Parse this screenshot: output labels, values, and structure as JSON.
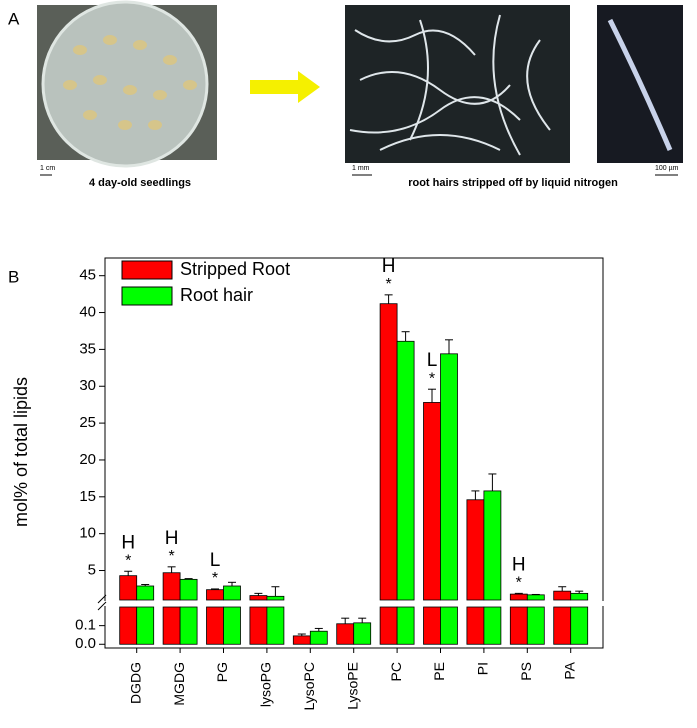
{
  "panel_a": {
    "label": "A",
    "scale_1": "1 cm",
    "caption_1": "4 day-old seedlings",
    "scale_2": "1 mm",
    "caption_2": "root hairs stripped off by liquid nitrogen",
    "scale_3": "100 µm"
  },
  "chart_data": {
    "type": "bar",
    "panel_label": "B",
    "y_label": "mol% of total lipids",
    "categories": [
      "DGDG",
      "MGDG",
      "PG",
      "lysoPG",
      "LysoPC",
      "LysoPE",
      "PC",
      "PE",
      "PI",
      "PS",
      "PA"
    ],
    "series": [
      {
        "name": "Stripped Root",
        "color": "#ff0000",
        "values": [
          4.3,
          4.7,
          2.4,
          1.6,
          0.045,
          0.11,
          41.2,
          27.8,
          14.6,
          1.8,
          2.2
        ],
        "errors": [
          0.6,
          0.8,
          0.1,
          0.3,
          0.01,
          0.03,
          1.2,
          1.8,
          1.2,
          0.1,
          0.6
        ]
      },
      {
        "name": "Root hair",
        "color": "#00ff00",
        "values": [
          2.9,
          3.8,
          2.9,
          1.5,
          0.07,
          0.115,
          36.1,
          34.4,
          15.8,
          1.7,
          1.9
        ],
        "errors": [
          0.2,
          0.1,
          0.5,
          1.3,
          0.015,
          0.025,
          1.3,
          1.9,
          2.3,
          0.05,
          0.3
        ]
      }
    ],
    "ylim": [
      1,
      47.4
    ],
    "yticks": [
      5,
      10,
      15,
      20,
      25,
      30,
      35,
      40,
      45
    ],
    "ylim_lower": [
      -0.02,
      0.2
    ],
    "yticks_lower": [
      {
        "value": 0,
        "label": "0.0"
      },
      0.1
    ],
    "legend": "top-left",
    "annotations": [
      {
        "label": "H",
        "marker": "*",
        "category": "DGDG"
      },
      {
        "label": "H",
        "marker": "*",
        "category": "MGDG"
      },
      {
        "label": "L",
        "marker": "*",
        "category": "PG"
      },
      {
        "label": "H",
        "marker": "*",
        "category": "PC"
      },
      {
        "label": "L",
        "marker": "*",
        "category": "PE"
      },
      {
        "label": "H",
        "marker": "*",
        "category": "PS"
      }
    ]
  }
}
